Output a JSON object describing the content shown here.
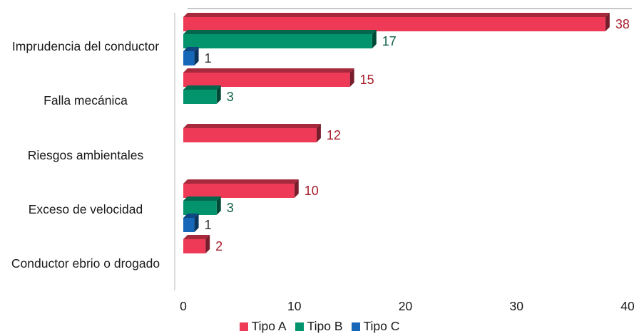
{
  "chart_data": {
    "type": "bar",
    "orientation": "horizontal",
    "categories": [
      "Imprudencia del conductor",
      "Falla mecánica",
      "Riesgos ambientales",
      "Exceso de velocidad",
      "Conductor ebrio o drogado"
    ],
    "series": [
      {
        "name": "Tipo A",
        "color": "#ee3a56",
        "label_color": "#a51c2a",
        "values": [
          38,
          15,
          12,
          10,
          2
        ]
      },
      {
        "name": "Tipo B",
        "color": "#03946e",
        "label_color": "#0c5e48",
        "values": [
          17,
          3,
          null,
          3,
          null
        ]
      },
      {
        "name": "Tipo C",
        "color": "#1667b8",
        "label_color": "#333333",
        "values": [
          1,
          null,
          null,
          1,
          null
        ]
      }
    ],
    "xlim": [
      0,
      40
    ],
    "xticks": [
      "0",
      "10",
      "20",
      "30",
      "40"
    ],
    "legend_position": "bottom",
    "grid": false,
    "style": "3d"
  }
}
